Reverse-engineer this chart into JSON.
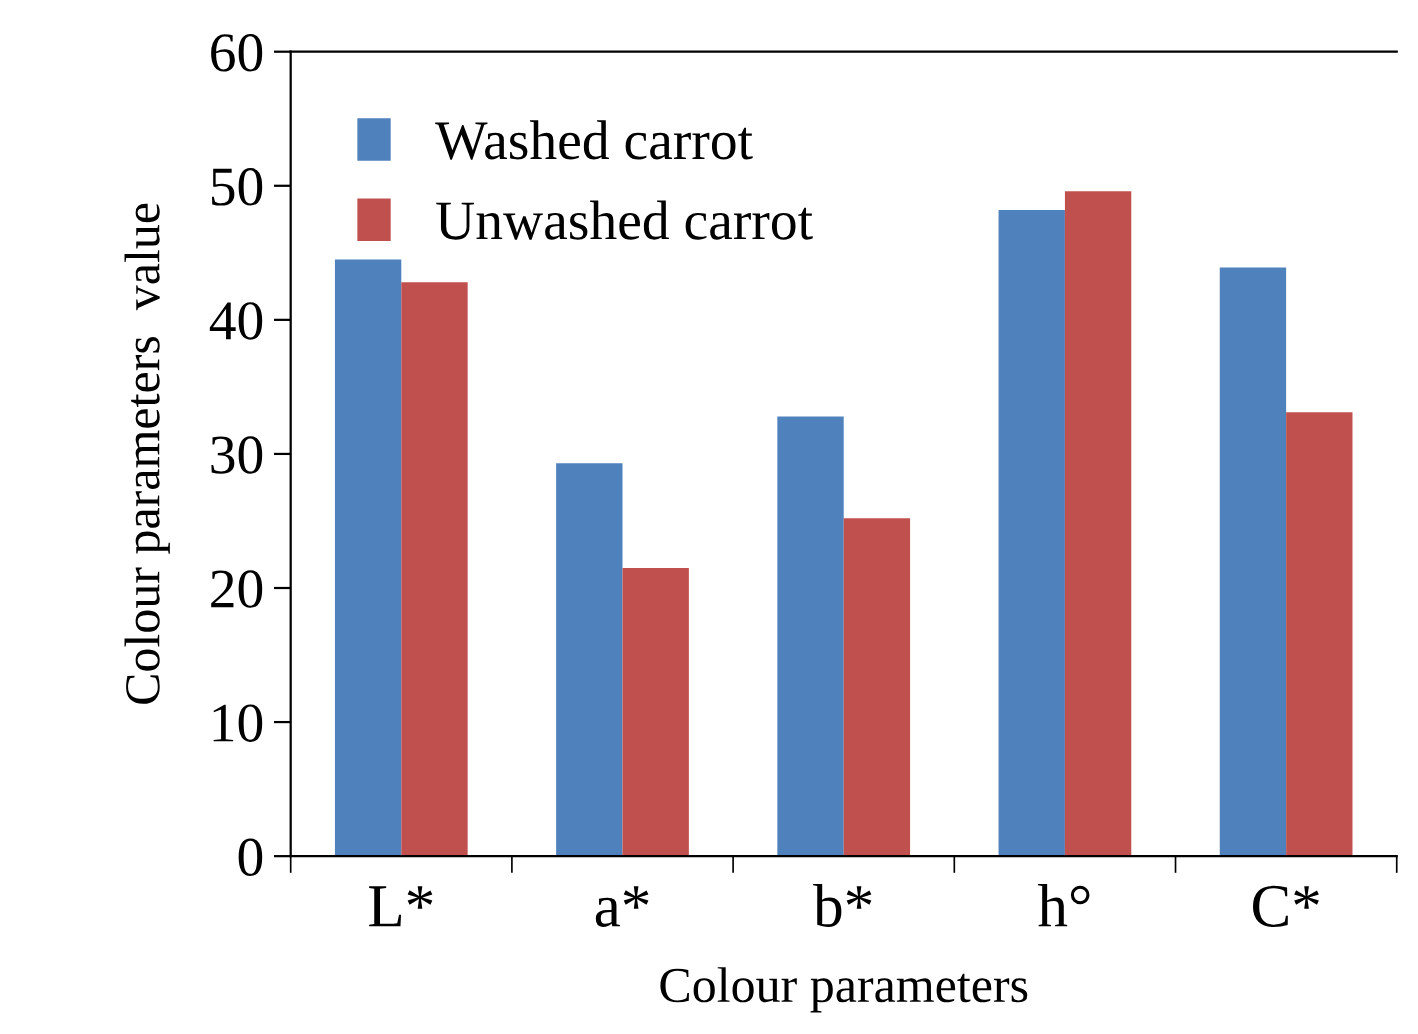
{
  "chart_data": {
    "type": "bar",
    "xlabel": "Colour parameters",
    "ylabel": "Colour parameters  value",
    "categories": [
      "L*",
      "a*",
      "b*",
      "h°",
      "C*"
    ],
    "series": [
      {
        "name": "Washed carrot",
        "color": "#4f81bd",
        "values": [
          44.5,
          29.3,
          32.8,
          48.2,
          43.9
        ]
      },
      {
        "name": "Unwashed carrot",
        "color": "#c0504d",
        "values": [
          42.8,
          21.5,
          25.2,
          49.6,
          33.1
        ]
      }
    ],
    "ylim": [
      0,
      60
    ],
    "yticks": [
      0,
      10,
      20,
      30,
      40,
      50,
      60
    ],
    "grid": false,
    "legend": "top left"
  }
}
